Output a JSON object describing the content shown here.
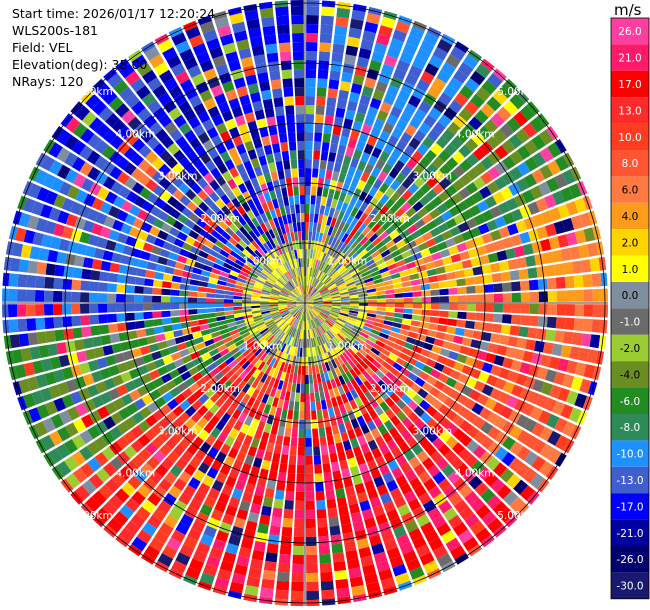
{
  "plot": {
    "start_time": "Start time: 2026/01/17 12:20:24",
    "instrument": "WLS200s-181",
    "field": "Field: VEL",
    "elevation": "Elevation(deg): 35.00",
    "nrays": "NRays: 120"
  },
  "range_rings": {
    "labels": [
      "1.00km",
      "2.00km",
      "3.00km",
      "4.00km",
      "5.00km"
    ]
  },
  "colorbar": {
    "unit": "m/s",
    "ticks": [
      "26.0",
      "21.0",
      "17.0",
      "13.0",
      "10.0",
      "8.0",
      "6.0",
      "4.0",
      "2.0",
      "1.0",
      "0.0",
      "-1.0",
      "-2.0",
      "-4.0",
      "-6.0",
      "-8.0",
      "-10.0",
      "-13.0",
      "-17.0",
      "-21.0",
      "-26.0",
      "-30.0"
    ],
    "colors": [
      "#ff3fa0",
      "#ff1a6a",
      "#ff0000",
      "#ff2a2a",
      "#ff3b20",
      "#ff5533",
      "#ff7a40",
      "#ff9b1a",
      "#ffd500",
      "#ffff00",
      "#7f8f9f",
      "#6b6b6b",
      "#9acd32",
      "#6b8e23",
      "#228b22",
      "#2e8b57",
      "#1e90ff",
      "#3f5fd0",
      "#0000ff",
      "#0000a0",
      "#000070",
      "#191970"
    ]
  }
}
